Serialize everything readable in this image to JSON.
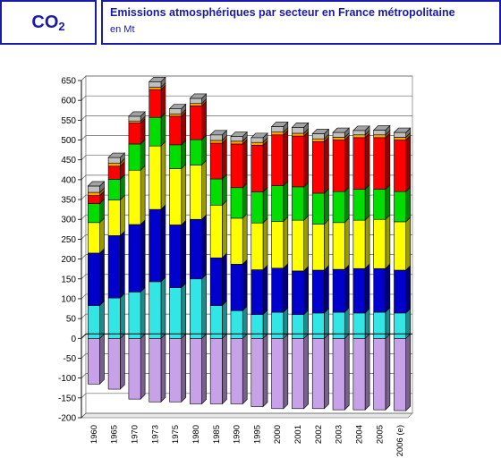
{
  "header": {
    "badge_main": "CO",
    "badge_sub": "2",
    "title": "Emissions atmosphériques par secteur en France métropolitaine",
    "subtitle": "en Mt"
  },
  "chart_data": {
    "type": "bar",
    "stacked": true,
    "title": "Emissions atmosphériques par secteur en France métropolitaine",
    "ylabel": "",
    "xlabel": "",
    "ylim": [
      -200,
      650
    ],
    "yticks": [
      650,
      600,
      550,
      500,
      450,
      400,
      350,
      300,
      250,
      200,
      150,
      100,
      50,
      0,
      -50,
      -100,
      -150,
      -200
    ],
    "grid": true,
    "legend": "none",
    "categories": [
      "1960",
      "1965",
      "1970",
      "1973",
      "1975",
      "1980",
      "1985",
      "1990",
      "1995",
      "2000",
      "2001",
      "2002",
      "2003",
      "2004",
      "2005",
      "2006 (e)"
    ],
    "series": [
      {
        "color": "#c8a2e8",
        "values": [
          -115,
          -128,
          -153,
          -160,
          -160,
          -165,
          -165,
          -165,
          -172,
          -177,
          -177,
          -177,
          -180,
          -180,
          -180,
          -182
        ]
      },
      {
        "color": "#33e6e6",
        "values": [
          83,
          102,
          117,
          143,
          128,
          150,
          83,
          70,
          60,
          66,
          60,
          64,
          66,
          64,
          66,
          64
        ]
      },
      {
        "color": "#0000cc",
        "values": [
          132,
          157,
          170,
          182,
          158,
          150,
          120,
          117,
          113,
          111,
          110,
          108,
          108,
          112,
          110,
          108
        ]
      },
      {
        "color": "#ffff00",
        "values": [
          77,
          90,
          137,
          160,
          142,
          137,
          133,
          116,
          118,
          118,
          128,
          116,
          118,
          122,
          124,
          122
        ]
      },
      {
        "color": "#00dd00",
        "values": [
          48,
          52,
          66,
          72,
          60,
          64,
          66,
          77,
          78,
          90,
          84,
          78,
          78,
          78,
          76,
          76
        ]
      },
      {
        "color": "#ff0000",
        "values": [
          20,
          33,
          53,
          70,
          72,
          85,
          90,
          110,
          118,
          128,
          128,
          130,
          130,
          130,
          130,
          130
        ]
      },
      {
        "color": "#ffa500",
        "values": [
          8,
          8,
          5,
          6,
          6,
          6,
          7,
          7,
          7,
          7,
          7,
          7,
          7,
          7,
          7,
          7
        ]
      },
      {
        "color": "#c0c0c0",
        "values": [
          16,
          14,
          12,
          14,
          13,
          13,
          14,
          12,
          12,
          14,
          15,
          13,
          12,
          11,
          12,
          12
        ]
      }
    ]
  }
}
